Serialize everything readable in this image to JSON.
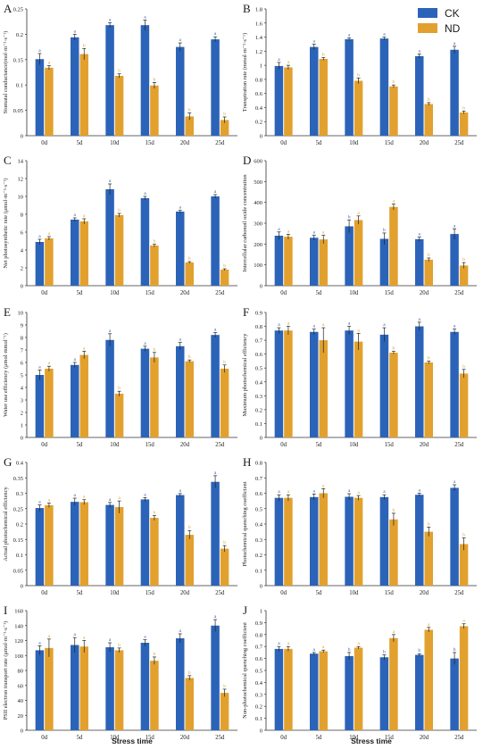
{
  "legend": {
    "position": "top-right",
    "items": [
      {
        "label": "CK",
        "color": "#2b63b8"
      },
      {
        "label": "ND",
        "color": "#e2a12e"
      }
    ]
  },
  "colors": {
    "ck": "#2b63b8",
    "nd": "#e2a12e",
    "axis": "#333333",
    "text": "#1a1a1a"
  },
  "xlabel_bottom": "Stress time",
  "chart_data": [
    {
      "type": "bar",
      "panel": "A",
      "ylabel": "Stomatal conductance(mol·m⁻²·s⁻¹)",
      "categories": [
        "0d",
        "5d",
        "10d",
        "15d",
        "20d",
        "25d"
      ],
      "ylim": [
        0,
        0.25
      ],
      "ticks": [
        "0",
        "0.05",
        "0.1",
        "0.15",
        "0.2",
        "0.25"
      ],
      "series": [
        {
          "name": "CK",
          "values": [
            0.151,
            0.194,
            0.218,
            0.218,
            0.175,
            0.19
          ],
          "err": [
            0.011,
            0.006,
            0.005,
            0.01,
            0.008,
            0.005
          ],
          "letters": [
            "a",
            "a",
            "a",
            "a",
            "a",
            "a"
          ]
        },
        {
          "name": "ND",
          "values": [
            0.134,
            0.161,
            0.118,
            0.099,
            0.038,
            0.031
          ],
          "err": [
            0.004,
            0.011,
            0.004,
            0.006,
            0.007,
            0.006
          ],
          "letters": [
            "a",
            "b",
            "b",
            "b",
            "b",
            "b"
          ]
        }
      ]
    },
    {
      "type": "bar",
      "panel": "B",
      "ylabel": "Transpiration rate (mmol·m⁻²·s⁻¹)",
      "categories": [
        "0d",
        "5d",
        "10d",
        "15d",
        "20d",
        "25d"
      ],
      "ylim": [
        0,
        1.8
      ],
      "ticks": [
        "0",
        "0.2",
        "0.4",
        "0.6",
        "0.8",
        "1",
        "1.2",
        "1.4",
        "1.6",
        "1.8"
      ],
      "series": [
        {
          "name": "CK",
          "values": [
            0.99,
            1.26,
            1.37,
            1.38,
            1.13,
            1.22
          ],
          "err": [
            0.05,
            0.04,
            0.02,
            0.02,
            0.03,
            0.05
          ],
          "letters": [
            "a",
            "a",
            "a",
            "a",
            "a",
            "a"
          ]
        },
        {
          "name": "ND",
          "values": [
            0.97,
            1.09,
            0.78,
            0.7,
            0.45,
            0.33
          ],
          "err": [
            0.03,
            0.02,
            0.04,
            0.02,
            0.02,
            0.02
          ],
          "letters": [
            "a",
            "b",
            "b",
            "b",
            "b",
            "b"
          ]
        }
      ]
    },
    {
      "type": "bar",
      "panel": "C",
      "ylabel": "Net photosynthetic rate (μmol·m⁻²·s⁻¹)",
      "categories": [
        "0d",
        "5d",
        "10d",
        "15d",
        "20d",
        "25d"
      ],
      "ylim": [
        0,
        14
      ],
      "ticks": [
        "0",
        "2",
        "4",
        "6",
        "8",
        "10",
        "12",
        "14"
      ],
      "series": [
        {
          "name": "CK",
          "values": [
            4.9,
            7.4,
            10.8,
            9.8,
            8.3,
            10.0
          ],
          "err": [
            0.3,
            0.2,
            0.6,
            0.2,
            0.15,
            0.2
          ],
          "letters": [
            "a",
            "a",
            "a",
            "a",
            "a",
            "a"
          ]
        },
        {
          "name": "ND",
          "values": [
            5.3,
            7.2,
            7.9,
            4.5,
            2.6,
            1.8
          ],
          "err": [
            0.2,
            0.3,
            0.2,
            0.15,
            0.1,
            0.1
          ],
          "letters": [
            "a",
            "a",
            "b",
            "b",
            "b",
            "b"
          ]
        }
      ]
    },
    {
      "type": "bar",
      "panel": "D",
      "ylabel": "Intercellular carbonoil oxide concentration",
      "categories": [
        "0d",
        "5d",
        "10d",
        "15d",
        "20d",
        "25d"
      ],
      "ylim": [
        0,
        600
      ],
      "ticks": [
        "0",
        "100",
        "200",
        "300",
        "400",
        "500",
        "600"
      ],
      "series": [
        {
          "name": "CK",
          "values": [
            240,
            230,
            285,
            225,
            223,
            248
          ],
          "err": [
            18,
            12,
            30,
            28,
            10,
            25
          ],
          "letters": [
            "a",
            "a",
            "b",
            "b",
            "a",
            "a"
          ]
        },
        {
          "name": "ND",
          "values": [
            235,
            222,
            315,
            378,
            125,
            97
          ],
          "err": [
            12,
            20,
            20,
            14,
            8,
            14
          ],
          "letters": [
            "a",
            "a",
            "a",
            "a",
            "b",
            "b"
          ]
        }
      ]
    },
    {
      "type": "bar",
      "panel": "E",
      "ylabel": "Water use efficiency (μmol·mmol⁻¹)",
      "categories": [
        "0d",
        "5d",
        "10d",
        "15d",
        "20d",
        "25d"
      ],
      "ylim": [
        0,
        10
      ],
      "ticks": [
        "0",
        "1",
        "2",
        "3",
        "4",
        "5",
        "6",
        "7",
        "8",
        "9",
        "10"
      ],
      "series": [
        {
          "name": "CK",
          "values": [
            5.0,
            5.8,
            7.8,
            7.1,
            7.3,
            8.2
          ],
          "err": [
            0.4,
            0.2,
            0.5,
            0.2,
            0.3,
            0.2
          ],
          "letters": [
            "a",
            "a",
            "a",
            "a",
            "a",
            "a"
          ]
        },
        {
          "name": "ND",
          "values": [
            5.5,
            6.6,
            3.5,
            6.4,
            6.1,
            5.5
          ],
          "err": [
            0.2,
            0.3,
            0.2,
            0.4,
            0.1,
            0.3
          ],
          "letters": [
            "a",
            "a",
            "b",
            "b",
            "b",
            "b"
          ]
        }
      ]
    },
    {
      "type": "bar",
      "panel": "F",
      "ylabel": "Maximum photochemical efficiency",
      "categories": [
        "0d",
        "5d",
        "10d",
        "15d",
        "20d",
        "25d"
      ],
      "ylim": [
        0,
        0.9
      ],
      "ticks": [
        "0",
        "0.1",
        "0.2",
        "0.3",
        "0.4",
        "0.5",
        "0.6",
        "0.7",
        "0.8",
        "0.9"
      ],
      "series": [
        {
          "name": "CK",
          "values": [
            0.77,
            0.76,
            0.77,
            0.74,
            0.8,
            0.76
          ],
          "err": [
            0.02,
            0.02,
            0.03,
            0.05,
            0.03,
            0.02
          ],
          "letters": [
            "a",
            "a",
            "a",
            "a",
            "a",
            "a"
          ]
        },
        {
          "name": "ND",
          "values": [
            0.77,
            0.7,
            0.69,
            0.61,
            0.54,
            0.46
          ],
          "err": [
            0.03,
            0.09,
            0.06,
            0.01,
            0.01,
            0.03
          ],
          "letters": [
            "a",
            "a",
            "a",
            "b",
            "b",
            "b"
          ]
        }
      ]
    },
    {
      "type": "bar",
      "panel": "G",
      "ylabel": "Actual photochemical efficiency",
      "categories": [
        "0d",
        "5d",
        "10d",
        "15d",
        "20d",
        "25d"
      ],
      "ylim": [
        0,
        0.4
      ],
      "ticks": [
        "0",
        "0.05",
        "0.1",
        "0.15",
        "0.2",
        "0.25",
        "0.3",
        "0.35",
        "0.4"
      ],
      "series": [
        {
          "name": "CK",
          "values": [
            0.252,
            0.272,
            0.262,
            0.28,
            0.294,
            0.337
          ],
          "err": [
            0.01,
            0.012,
            0.008,
            0.006,
            0.005,
            0.02
          ],
          "letters": [
            "a",
            "a",
            "a",
            "a",
            "a",
            "a"
          ]
        },
        {
          "name": "ND",
          "values": [
            0.261,
            0.271,
            0.255,
            0.22,
            0.165,
            0.12
          ],
          "err": [
            0.007,
            0.008,
            0.02,
            0.008,
            0.014,
            0.01
          ],
          "letters": [
            "a",
            "a",
            "a",
            "b",
            "b",
            "b"
          ]
        }
      ]
    },
    {
      "type": "bar",
      "panel": "H",
      "ylabel": "Photochemical quenching coefficient",
      "categories": [
        "0d",
        "5d",
        "10d",
        "15d",
        "20d",
        "25d"
      ],
      "ylim": [
        0,
        0.8
      ],
      "ticks": [
        "0",
        "0.1",
        "0.2",
        "0.3",
        "0.4",
        "0.5",
        "0.6",
        "0.7",
        "0.8"
      ],
      "series": [
        {
          "name": "CK",
          "values": [
            0.57,
            0.575,
            0.577,
            0.575,
            0.59,
            0.635
          ],
          "err": [
            0.02,
            0.02,
            0.02,
            0.015,
            0.01,
            0.02
          ],
          "letters": [
            "a",
            "a",
            "a",
            "a",
            "a",
            "a"
          ]
        },
        {
          "name": "ND",
          "values": [
            0.57,
            0.6,
            0.57,
            0.43,
            0.35,
            0.27
          ],
          "err": [
            0.02,
            0.03,
            0.015,
            0.04,
            0.03,
            0.04
          ],
          "letters": [
            "a",
            "a",
            "a",
            "b",
            "b",
            "b"
          ]
        }
      ]
    },
    {
      "type": "bar",
      "panel": "I",
      "ylabel": "PSII electron transport rate (μmol·m⁻²·s⁻¹)",
      "categories": [
        "0d",
        "5d",
        "10d",
        "15d",
        "20d",
        "25d"
      ],
      "ylim": [
        0,
        160
      ],
      "ticks": [
        "0",
        "20",
        "40",
        "60",
        "80",
        "100",
        "120",
        "140",
        "160"
      ],
      "series": [
        {
          "name": "CK",
          "values": [
            107,
            114,
            111,
            117,
            123,
            140
          ],
          "err": [
            6,
            10,
            6,
            4,
            6,
            8
          ],
          "letters": [
            "a",
            "a",
            "a",
            "a",
            "a",
            "a"
          ]
        },
        {
          "name": "ND",
          "values": [
            110,
            112,
            107,
            93,
            70,
            50
          ],
          "err": [
            12,
            8,
            3,
            5,
            3,
            5
          ],
          "letters": [
            "a",
            "a",
            "b",
            "b",
            "b",
            "b"
          ]
        }
      ]
    },
    {
      "type": "bar",
      "panel": "J",
      "ylabel": "Non-photochemical quenching coefficient",
      "categories": [
        "0d",
        "5d",
        "10d",
        "15d",
        "20d",
        "25d"
      ],
      "ylim": [
        0,
        1
      ],
      "ticks": [
        "0",
        "0.1",
        "0.2",
        "0.3",
        "0.4",
        "0.5",
        "0.6",
        "0.7",
        "0.8",
        "0.9",
        "1"
      ],
      "series": [
        {
          "name": "CK",
          "values": [
            0.68,
            0.64,
            0.62,
            0.61,
            0.63,
            0.6
          ],
          "err": [
            0.02,
            0.01,
            0.03,
            0.02,
            0.01,
            0.05
          ],
          "letters": [
            "a",
            "a",
            "b",
            "b",
            "b",
            "b"
          ]
        },
        {
          "name": "ND",
          "values": [
            0.68,
            0.66,
            0.69,
            0.77,
            0.84,
            0.87
          ],
          "err": [
            0.02,
            0.01,
            0.01,
            0.03,
            0.02,
            0.02
          ],
          "letters": [
            "a",
            "a",
            "a",
            "a",
            "a",
            "a"
          ]
        }
      ]
    }
  ]
}
